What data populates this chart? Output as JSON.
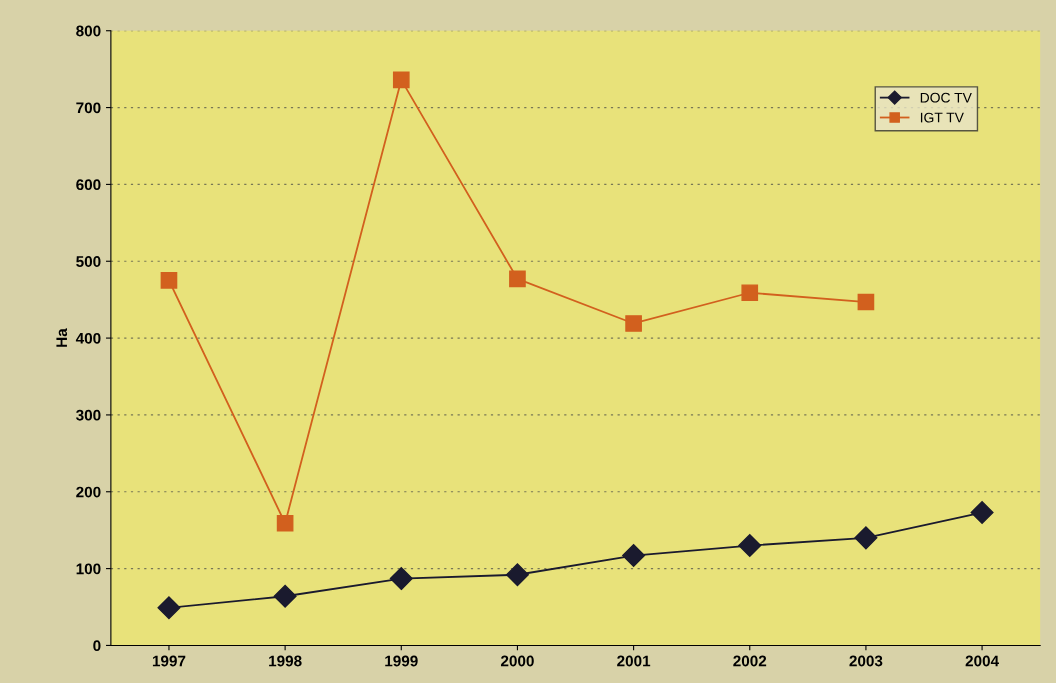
{
  "chart_data": {
    "type": "line",
    "ylabel": "Ha",
    "categories": [
      "1997",
      "1998",
      "1999",
      "2000",
      "2001",
      "2002",
      "2003",
      "2004"
    ],
    "series": [
      {
        "name": "DOC TV",
        "color": "#1a1a2e",
        "marker": "diamond",
        "values": [
          49,
          64,
          87,
          92,
          117,
          130,
          140,
          173
        ]
      },
      {
        "name": "IGT TV",
        "color": "#d2601e",
        "marker": "square",
        "values": [
          475,
          159,
          736,
          477,
          419,
          459,
          447,
          null
        ]
      }
    ],
    "ylim": [
      0,
      800
    ],
    "yticks": [
      0,
      100,
      200,
      300,
      400,
      500,
      600,
      700,
      800
    ],
    "grid": "y",
    "legend": "top right",
    "line_style": "solid"
  }
}
